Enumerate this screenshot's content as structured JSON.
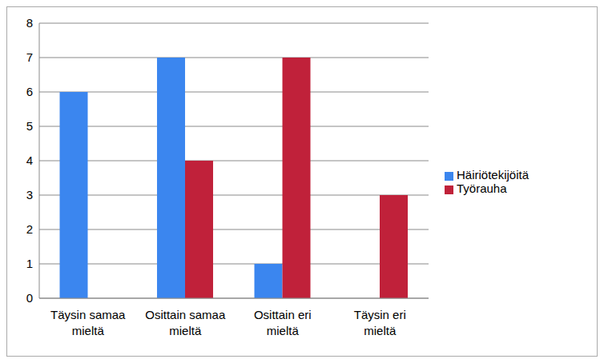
{
  "chart_data": {
    "type": "bar",
    "categories": [
      "Täysin samaa mieltä",
      "Osittain samaa mieltä",
      "Osittain eri mieltä",
      "Täysin eri mieltä"
    ],
    "series": [
      {
        "name": "Häiriötekijöitä",
        "color": "#3b86ef",
        "values": [
          6,
          7,
          1,
          0
        ]
      },
      {
        "name": "Työrauha",
        "color": "#c0213a",
        "values": [
          0,
          4,
          7,
          3
        ]
      }
    ],
    "ylim": [
      0,
      8
    ],
    "yticks": [
      0,
      1,
      2,
      3,
      4,
      5,
      6,
      7,
      8
    ],
    "grid": true,
    "legend": "right"
  }
}
